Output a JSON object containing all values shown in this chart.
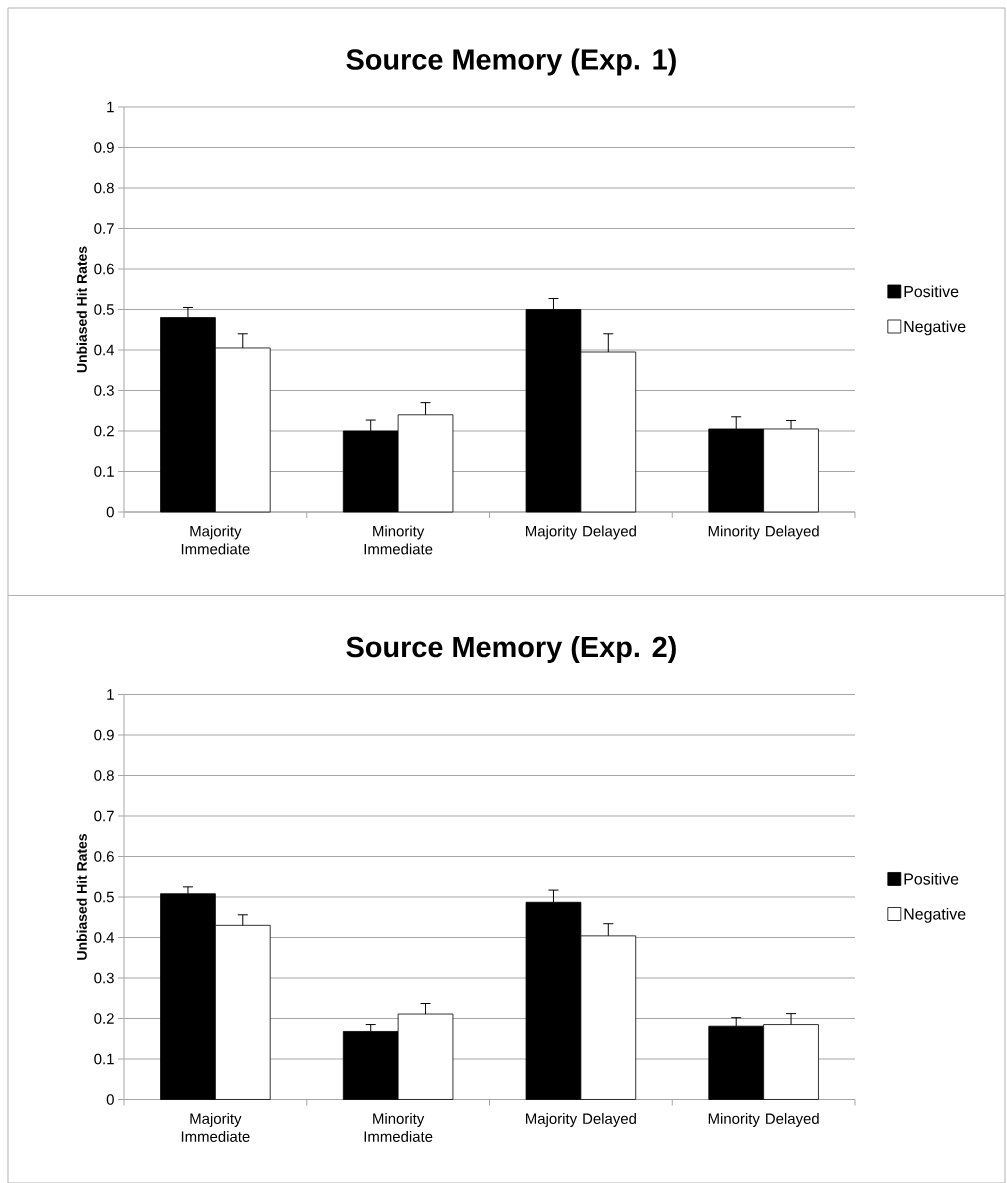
{
  "chart_data": [
    {
      "type": "bar",
      "title": "Source Memory (Exp. 1)",
      "ylabel": "Unbiased Hit Rates",
      "categories": [
        "Majority Immediate",
        "Minority Immediate",
        "Majority Delayed",
        "Minority Delayed"
      ],
      "series": [
        {
          "name": "Positive",
          "color": "#000000",
          "values": [
            0.48,
            0.2,
            0.5,
            0.205
          ],
          "errors": [
            [
              0.48,
              0.505
            ],
            [
              0.2,
              0.227
            ],
            [
              0.5,
              0.527
            ],
            [
              0.205,
              0.235
            ]
          ]
        },
        {
          "name": "Negative",
          "color": "#ffffff",
          "values": [
            0.405,
            0.24,
            0.395,
            0.205
          ],
          "errors": [
            [
              0.405,
              0.44
            ],
            [
              0.24,
              0.27
            ],
            [
              0.395,
              0.44
            ],
            [
              0.205,
              0.226
            ]
          ]
        }
      ],
      "ylim": [
        0,
        1
      ],
      "yticks": [
        0,
        0.1,
        0.2,
        0.3,
        0.4,
        0.5,
        0.6,
        0.7,
        0.8,
        0.9,
        1
      ],
      "grid": "y",
      "legend": "right"
    },
    {
      "type": "bar",
      "title": "Source Memory (Exp. 2)",
      "ylabel": "Unbiased Hit Rates",
      "categories": [
        "Majority Immediate",
        "Minority Immediate",
        "Majority Delayed",
        "Minority Delayed"
      ],
      "series": [
        {
          "name": "Positive",
          "color": "#000000",
          "values": [
            0.508,
            0.168,
            0.487,
            0.181
          ],
          "errors": [
            [
              0.508,
              0.525
            ],
            [
              0.168,
              0.185
            ],
            [
              0.487,
              0.517
            ],
            [
              0.181,
              0.202
            ]
          ]
        },
        {
          "name": "Negative",
          "color": "#ffffff",
          "values": [
            0.43,
            0.211,
            0.404,
            0.185
          ],
          "errors": [
            [
              0.43,
              0.456
            ],
            [
              0.211,
              0.237
            ],
            [
              0.404,
              0.434
            ],
            [
              0.185,
              0.212
            ]
          ]
        }
      ],
      "ylim": [
        0,
        1
      ],
      "yticks": [
        0,
        0.1,
        0.2,
        0.3,
        0.4,
        0.5,
        0.6,
        0.7,
        0.8,
        0.9,
        1
      ],
      "grid": "y",
      "legend": "right"
    }
  ]
}
